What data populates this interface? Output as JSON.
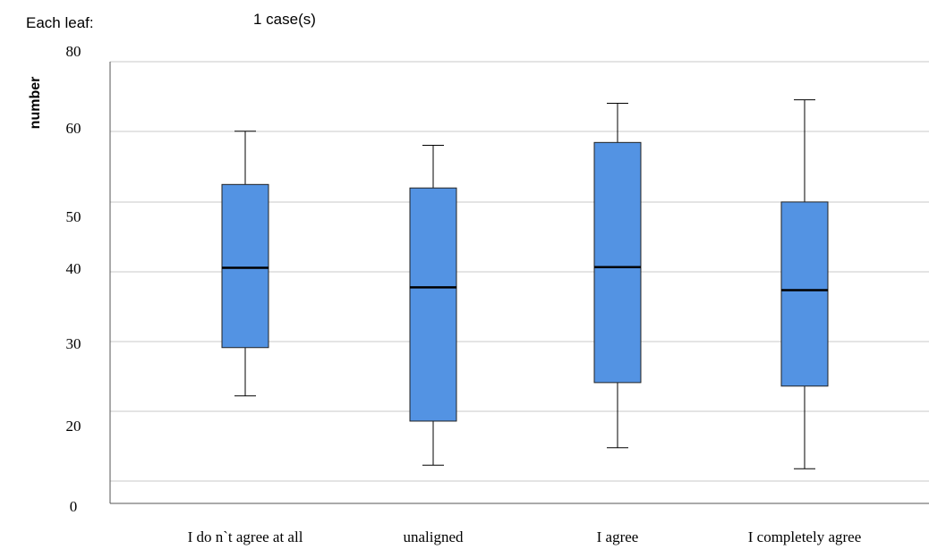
{
  "header": {
    "leaf_label": "Each leaf:",
    "leaf_value": "1 case(s)"
  },
  "chart_data": {
    "type": "boxplot",
    "ylabel": "number",
    "xlabel": "",
    "y_tick_labels": [
      "0",
      "20",
      "30",
      "40",
      "50",
      "60",
      "80"
    ],
    "categories": [
      "I do n`t agree at all",
      "unaligned",
      "I agree",
      "I completely agree"
    ],
    "series": [
      {
        "category": "I do n`t agree at all",
        "whisker_low": 22.2,
        "q1": 29.1,
        "median": 40.5,
        "q3": 52.4,
        "whisker_high": 60.0
      },
      {
        "category": "unaligned",
        "whisker_low": 12.3,
        "q1": 18.6,
        "median": 37.7,
        "q3": 51.9,
        "whisker_high": 58.0
      },
      {
        "category": "I agree",
        "whisker_low": 14.8,
        "q1": 24.1,
        "median": 40.6,
        "q3": 58.4,
        "whisker_high": 64.0
      },
      {
        "category": "I completely agree",
        "whisker_low": 11.8,
        "q1": 23.6,
        "median": 37.3,
        "q3": 49.9,
        "whisker_high": 64.5
      }
    ],
    "box_color": "#5393e3",
    "grid": true
  }
}
